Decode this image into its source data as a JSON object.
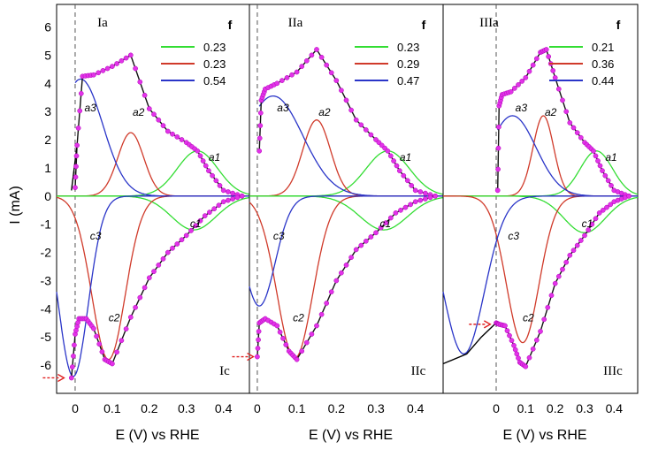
{
  "chart_data": {
    "type": "line",
    "y_axis_label": "I (mA)",
    "ylim": [
      -7,
      6.8
    ],
    "y_ticks": [
      "6",
      "5",
      "4",
      "3",
      "2",
      "1",
      "0",
      "-1",
      "-2",
      "-3",
      "-4",
      "-5",
      "-6"
    ],
    "panels": [
      {
        "top_label": "Ia",
        "bottom_label": "Ic",
        "xlabel": "E (V) vs RHE",
        "xlim": [
          -0.05,
          0.47
        ],
        "x_ticks": [
          "0",
          "0.1",
          "0.2",
          "0.3",
          "0.4"
        ],
        "legend": {
          "title": "f",
          "placement": "top-right",
          "entries": [
            {
              "value": "0.23",
              "color": "#33dd33"
            },
            {
              "value": "0.23",
              "color": "#d03a2a"
            },
            {
              "value": "0.54",
              "color": "#2a35c8"
            }
          ]
        },
        "curve_labels": {
          "a1": "a1",
          "a2": "a2",
          "a3": "a3",
          "c1": "c1",
          "c2": "c2",
          "c3": "c3"
        },
        "arrow_at": {
          "x": -0.03,
          "y": -6.45
        },
        "anodic": {
          "a1": {
            "amp": 1.6,
            "center": 0.33,
            "width": 0.055
          },
          "a2": {
            "amp": 2.25,
            "center": 0.15,
            "width": 0.035
          },
          "a3": {
            "amp": 4.15,
            "center": 0.015,
            "width": 0.06,
            "onset": 0.0
          }
        },
        "cathodic": {
          "c1": {
            "amp": -1.2,
            "center": 0.32,
            "width": 0.06
          },
          "c2": {
            "amp": -5.8,
            "center": 0.09,
            "width": 0.045
          },
          "c3": {
            "amp": -6.4,
            "center": -0.005,
            "width": 0.04
          }
        },
        "sum_anodic": {
          "x": [
            0.0,
            0.005,
            0.02,
            0.05,
            0.1,
            0.15,
            0.2,
            0.25,
            0.3,
            0.33,
            0.36,
            0.4,
            0.45
          ],
          "y": [
            0.3,
            1.8,
            4.25,
            4.3,
            4.6,
            5.0,
            3.1,
            2.3,
            1.9,
            1.6,
            0.9,
            0.2,
            0.0
          ]
        },
        "sum_cathodic": {
          "x": [
            -0.01,
            0.0,
            0.01,
            0.03,
            0.05,
            0.08,
            0.1,
            0.15,
            0.2,
            0.25,
            0.3,
            0.35,
            0.4,
            0.45
          ],
          "y": [
            -6.45,
            -4.9,
            -4.35,
            -4.35,
            -4.7,
            -5.8,
            -5.95,
            -4.3,
            -2.9,
            -2.0,
            -1.4,
            -0.7,
            -0.2,
            0.0
          ]
        },
        "black_segment": {
          "x": [
            -0.01,
            0.005
          ],
          "y": [
            0.2,
            1.8
          ]
        }
      },
      {
        "top_label": "IIa",
        "bottom_label": "IIc",
        "xlabel": "E (V) vs RHE",
        "xlim": [
          -0.02,
          0.47
        ],
        "x_ticks": [
          "0",
          "0.1",
          "0.2",
          "0.3",
          "0.4"
        ],
        "legend": {
          "title": "f",
          "placement": "top-right",
          "entries": [
            {
              "value": "0.23",
              "color": "#33dd33"
            },
            {
              "value": "0.29",
              "color": "#d03a2a"
            },
            {
              "value": "0.47",
              "color": "#2a35c8"
            }
          ]
        },
        "curve_labels": {
          "a1": "a1",
          "a2": "a2",
          "a3": "a3",
          "c1": "c1",
          "c2": "c2",
          "c3": "c3"
        },
        "arrow_at": {
          "x": -0.01,
          "y": -5.7
        },
        "anodic": {
          "a1": {
            "amp": 1.6,
            "center": 0.33,
            "width": 0.055
          },
          "a2": {
            "amp": 2.7,
            "center": 0.15,
            "width": 0.035
          },
          "a3": {
            "amp": 3.55,
            "center": 0.04,
            "width": 0.075,
            "onset": 0.005
          }
        },
        "cathodic": {
          "c1": {
            "amp": -1.2,
            "center": 0.32,
            "width": 0.06
          },
          "c2": {
            "amp": -5.75,
            "center": 0.095,
            "width": 0.045
          },
          "c3": {
            "amp": -3.9,
            "center": 0.005,
            "width": 0.04
          }
        },
        "sum_anodic": {
          "x": [
            0.005,
            0.01,
            0.02,
            0.05,
            0.1,
            0.15,
            0.2,
            0.25,
            0.3,
            0.33,
            0.36,
            0.4,
            0.45
          ],
          "y": [
            1.6,
            3.4,
            3.8,
            4.0,
            4.4,
            5.2,
            4.1,
            2.7,
            2.0,
            1.6,
            0.9,
            0.2,
            0.0
          ]
        },
        "sum_cathodic": {
          "x": [
            0.0,
            0.005,
            0.02,
            0.05,
            0.08,
            0.1,
            0.15,
            0.2,
            0.25,
            0.3,
            0.35,
            0.4,
            0.45
          ],
          "y": [
            -5.7,
            -4.5,
            -4.35,
            -4.6,
            -5.5,
            -5.8,
            -4.6,
            -3.0,
            -1.9,
            -1.3,
            -0.6,
            -0.2,
            0.0
          ]
        },
        "black_segment": {
          "x": [
            0.0,
            0.0
          ],
          "y": [
            0.0,
            0.0
          ]
        }
      },
      {
        "top_label": "IIIa",
        "bottom_label": "IIIc",
        "xlabel": "E (V) vs RHE",
        "xlim": [
          -0.18,
          0.48
        ],
        "x_ticks": [
          "0",
          "0.1",
          "0.2",
          "0.3",
          "0.4"
        ],
        "legend": {
          "title": "f",
          "placement": "top-right",
          "entries": [
            {
              "value": "0.21",
              "color": "#33dd33"
            },
            {
              "value": "0.36",
              "color": "#d03a2a"
            },
            {
              "value": "0.44",
              "color": "#2a35c8"
            }
          ]
        },
        "curve_labels": {
          "a1": "a1",
          "a2": "a2",
          "a3": "a3",
          "c1": "c1",
          "c2": "c2",
          "c3": "c3"
        },
        "arrow_at": {
          "x": -0.02,
          "y": -4.55
        },
        "anodic": {
          "a1": {
            "amp": 1.6,
            "center": 0.34,
            "width": 0.055
          },
          "a2": {
            "amp": 2.85,
            "center": 0.16,
            "width": 0.035
          },
          "a3": {
            "amp": 2.85,
            "center": 0.055,
            "width": 0.08,
            "onset": 0.005
          }
        },
        "cathodic": {
          "c1": {
            "amp": -1.3,
            "center": 0.3,
            "width": 0.07
          },
          "c2": {
            "amp": -5.2,
            "center": 0.09,
            "width": 0.055
          },
          "c3": {
            "amp": -5.6,
            "center": -0.11,
            "width": 0.07
          }
        },
        "sum_anodic": {
          "x": [
            0.005,
            0.01,
            0.02,
            0.05,
            0.1,
            0.15,
            0.17,
            0.2,
            0.25,
            0.3,
            0.33,
            0.36,
            0.4,
            0.45
          ],
          "y": [
            0.2,
            3.2,
            3.6,
            3.7,
            4.2,
            5.1,
            5.2,
            4.2,
            2.6,
            1.9,
            1.6,
            0.9,
            0.2,
            0.0
          ]
        },
        "sum_cathodic": {
          "x": [
            0.0,
            0.01,
            0.03,
            0.06,
            0.08,
            0.1,
            0.15,
            0.2,
            0.25,
            0.3,
            0.35,
            0.4,
            0.45
          ],
          "y": [
            -4.5,
            -4.55,
            -4.6,
            -5.3,
            -5.9,
            -6.05,
            -4.8,
            -3.1,
            -2.1,
            -1.4,
            -0.6,
            -0.2,
            0.0
          ]
        },
        "black_segment": {
          "x": [
            -0.18,
            -0.1,
            -0.05,
            0.0
          ],
          "y": [
            -5.95,
            -5.6,
            -5.0,
            -4.5
          ]
        }
      }
    ]
  }
}
